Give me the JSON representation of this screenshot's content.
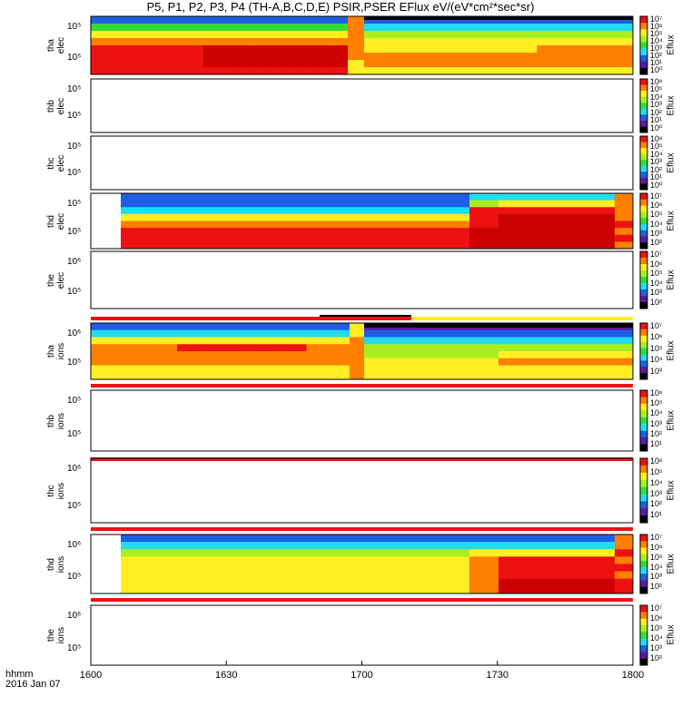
{
  "title": "P5, P1, P2, P3, P4 (TH-A,B,C,D,E) PSIR,PSER EFlux eV/(eV*cm²*sec*sr)",
  "footer": {
    "line1": "hhmm",
    "line2": "2016 Jan 07"
  },
  "x_ticks": [
    "1600",
    "1630",
    "1700",
    "1730",
    "1800"
  ],
  "colorbar_label": "Eflux",
  "colors": {
    "red": "#ee1111",
    "darkred": "#cc0000",
    "orange": "#ff7f00",
    "yellow": "#ffee22",
    "lightgreen": "#aaee22",
    "green": "#33dd33",
    "cyan": "#22ddee",
    "blue": "#1e5fe6",
    "purple": "#5a1aa0",
    "black": "#000000"
  },
  "chart_data": [
    {
      "type": "heatmap",
      "probe": "tha",
      "species": "elec",
      "ylabel": [
        "tha",
        "elec"
      ],
      "yticks": [
        "10⁵",
        "10⁵"
      ],
      "cb_ticks": [
        "10⁷",
        "10⁶",
        "10⁵",
        "10⁴",
        "10³",
        "10²",
        "10¹",
        "10⁰"
      ],
      "has_data": true
    },
    {
      "type": "heatmap",
      "probe": "thb",
      "species": "elec",
      "ylabel": [
        "thb",
        "elec"
      ],
      "yticks": [
        "10⁵",
        "10⁵"
      ],
      "cb_ticks": [
        "10⁶",
        "10⁵",
        "10⁴",
        "10³",
        "10²",
        "10¹",
        "10⁰"
      ],
      "has_data": false
    },
    {
      "type": "heatmap",
      "probe": "thc",
      "species": "elec",
      "ylabel": [
        "thc",
        "elec"
      ],
      "yticks": [
        "10⁵",
        "10⁵"
      ],
      "cb_ticks": [
        "10⁶",
        "10⁵",
        "10⁴",
        "10³",
        "10²",
        "10¹",
        "10⁰"
      ],
      "has_data": false
    },
    {
      "type": "heatmap",
      "probe": "thd",
      "species": "elec",
      "ylabel": [
        "thd",
        "elec"
      ],
      "yticks": [
        "10⁵",
        "10⁵"
      ],
      "cb_ticks": [
        "10⁷",
        "10⁶",
        "10⁵",
        "10⁴",
        "10³",
        "10²"
      ],
      "has_data": true
    },
    {
      "type": "heatmap",
      "probe": "the",
      "species": "elec",
      "ylabel": [
        "the",
        "elec"
      ],
      "yticks": [
        "10⁶",
        "10⁵"
      ],
      "cb_ticks": [
        "10⁷",
        "10⁶",
        "10⁵",
        "10⁴",
        "10³",
        "10²"
      ],
      "has_data": false
    },
    {
      "type": "heatmap",
      "probe": "tha",
      "species": "ions",
      "ylabel": [
        "tha",
        "ions"
      ],
      "yticks": [
        "10⁶",
        "10⁵"
      ],
      "cb_ticks": [
        "10⁷",
        "10⁶",
        "10⁵",
        "10⁴",
        "10³"
      ],
      "has_data": true
    },
    {
      "type": "heatmap",
      "probe": "thb",
      "species": "ions",
      "ylabel": [
        "thb",
        "ions"
      ],
      "yticks": [
        "10⁵",
        "10⁵"
      ],
      "cb_ticks": [
        "10⁶",
        "10⁵",
        "10⁴",
        "10³",
        "10²",
        "10¹"
      ],
      "has_data": false
    },
    {
      "type": "heatmap",
      "probe": "thc",
      "species": "ions",
      "ylabel": [
        "thc",
        "ions"
      ],
      "yticks": [
        "10⁶",
        "10⁵"
      ],
      "cb_ticks": [
        "10⁶",
        "10⁵",
        "10⁴",
        "10³",
        "10²",
        "10¹"
      ],
      "has_data": false
    },
    {
      "type": "heatmap",
      "probe": "thd",
      "species": "ions",
      "ylabel": [
        "thd",
        "ions"
      ],
      "yticks": [
        "10⁶",
        "10⁵"
      ],
      "cb_ticks": [
        "10⁷",
        "10⁶",
        "10⁵",
        "10⁴",
        "10³",
        "10²"
      ],
      "has_data": true
    },
    {
      "type": "heatmap",
      "probe": "the",
      "species": "ions",
      "ylabel": [
        "the",
        "ions"
      ],
      "yticks": [
        "10⁶",
        "10⁵"
      ],
      "cb_ticks": [
        "10⁷",
        "10⁶",
        "10⁵",
        "10⁴",
        "10³",
        "10²"
      ],
      "has_data": false
    }
  ]
}
